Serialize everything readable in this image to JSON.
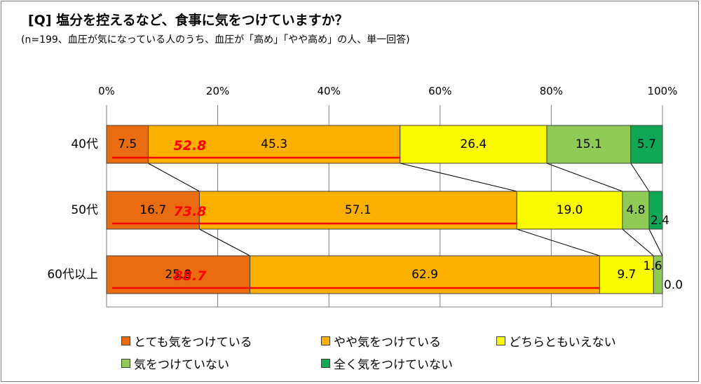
{
  "title": "[Q] 塩分を控えるなど、食事に気をつけていますか？",
  "subtitle": "(n=199、血圧が気になっている人のうち、血圧が「高め」「やや高め」の人、単一回答)",
  "chart_data": {
    "type": "bar",
    "orientation": "horizontal",
    "stacked": true,
    "percent": true,
    "categories": [
      "40代",
      "50代",
      "60代以上"
    ],
    "xlim": [
      0,
      100
    ],
    "x_ticks": [
      "0%",
      "20%",
      "40%",
      "60%",
      "80%",
      "100%"
    ],
    "grid": true,
    "series": [
      {
        "name": "とても気をつけている",
        "color": "#e96c10",
        "values": [
          7.5,
          16.7,
          25.8
        ],
        "labels": [
          "7.5",
          "16.7",
          "25.8"
        ]
      },
      {
        "name": "やや気をつけている",
        "color": "#fcb100",
        "values": [
          45.3,
          57.1,
          62.9
        ],
        "labels": [
          "45.3",
          "57.1",
          "62.9"
        ]
      },
      {
        "name": "どちらともいえない",
        "color": "#fafa00",
        "values": [
          26.4,
          19.0,
          9.7
        ],
        "labels": [
          "26.4",
          "19.0",
          "9.7"
        ]
      },
      {
        "name": "気をつけていない",
        "color": "#8fca54",
        "values": [
          15.1,
          4.8,
          1.6
        ],
        "labels": [
          "15.1",
          "4.8",
          "1.6"
        ]
      },
      {
        "name": "全く気をつけていない",
        "color": "#10a855",
        "values": [
          5.7,
          2.4,
          0.0
        ],
        "labels": [
          "5.7",
          "2.4",
          "0.0"
        ]
      }
    ],
    "combined": {
      "color": "#ff0000",
      "values": [
        52.8,
        73.8,
        88.7
      ],
      "labels": [
        "52.8",
        "73.8",
        "88.7"
      ]
    },
    "legend_position": "bottom"
  }
}
